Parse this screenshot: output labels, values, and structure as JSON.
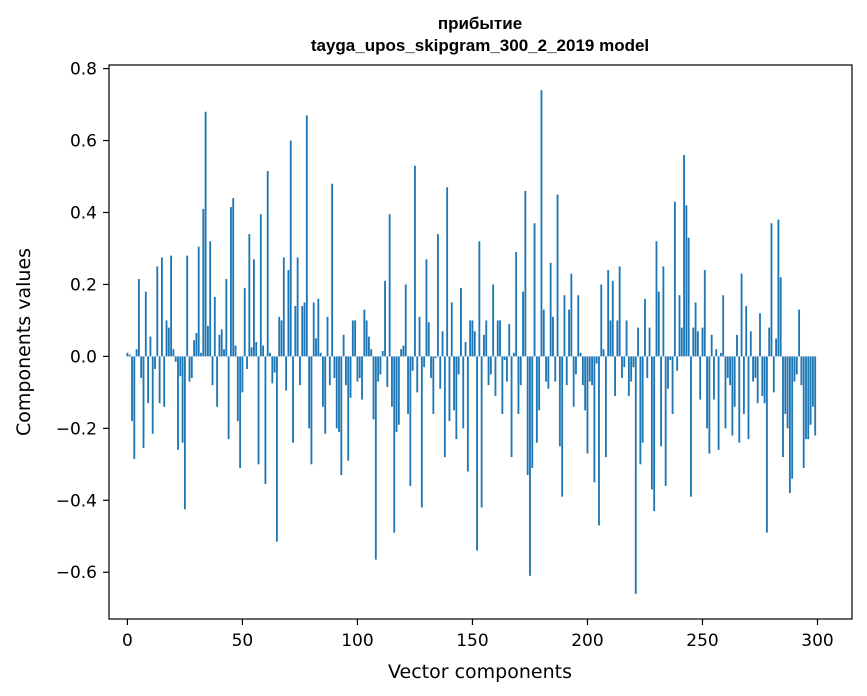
{
  "chart_data": {
    "type": "bar",
    "title": "прибытие",
    "subtitle": "tayga_upos_skipgram_300_2_2019 model",
    "xlabel": "Vector components",
    "ylabel": "Components values",
    "xlim": [
      -8,
      315
    ],
    "ylim": [
      -0.73,
      0.81
    ],
    "xticks": [
      0,
      50,
      100,
      150,
      200,
      250,
      300
    ],
    "yticks": [
      -0.6,
      -0.4,
      -0.2,
      0.0,
      0.2,
      0.4,
      0.6,
      0.8
    ],
    "ytick_labels": [
      "−0.6",
      "−0.4",
      "−0.2",
      "0.0",
      "0.2",
      "0.4",
      "0.6",
      "0.8"
    ],
    "grid": false,
    "bar_color": "#1f77b4",
    "values": [
      0.01,
      0.005,
      -0.18,
      -0.285,
      0.02,
      0.215,
      -0.06,
      -0.255,
      0.18,
      -0.13,
      0.055,
      -0.215,
      -0.035,
      0.25,
      -0.13,
      0.275,
      -0.14,
      0.1,
      0.08,
      0.28,
      0.02,
      -0.015,
      -0.26,
      -0.055,
      -0.24,
      -0.425,
      0.28,
      -0.07,
      -0.06,
      0.045,
      0.065,
      0.305,
      0.01,
      0.41,
      0.68,
      0.085,
      0.32,
      -0.08,
      0.165,
      -0.14,
      0.06,
      0.075,
      0.02,
      0.215,
      -0.23,
      0.415,
      0.44,
      0.03,
      -0.18,
      -0.31,
      -0.1,
      0.19,
      -0.035,
      0.34,
      0.025,
      0.27,
      0.04,
      -0.3,
      0.395,
      0.03,
      -0.355,
      0.515,
      0.01,
      -0.075,
      -0.045,
      -0.515,
      0.11,
      0.1,
      0.275,
      -0.095,
      0.24,
      0.6,
      -0.24,
      0.14,
      0.275,
      -0.08,
      0.14,
      0.15,
      0.67,
      -0.2,
      -0.3,
      0.15,
      0.05,
      0.16,
      0.01,
      -0.14,
      -0.215,
      0.11,
      -0.08,
      0.48,
      -0.06,
      -0.2,
      -0.21,
      -0.33,
      0.06,
      -0.08,
      -0.29,
      -0.115,
      0.1,
      0.1,
      -0.07,
      -0.06,
      -0.12,
      0.13,
      0.1,
      0.055,
      0.02,
      -0.175,
      -0.565,
      -0.07,
      -0.05,
      0.015,
      0.21,
      -0.085,
      0.395,
      -0.14,
      -0.49,
      -0.21,
      -0.19,
      0.02,
      0.03,
      0.2,
      -0.16,
      -0.36,
      -0.04,
      0.53,
      -0.1,
      0.11,
      -0.42,
      -0.03,
      0.27,
      0.095,
      -0.06,
      -0.16,
      -0.005,
      0.34,
      -0.09,
      0.07,
      -0.28,
      0.47,
      -0.18,
      0.15,
      -0.15,
      -0.23,
      -0.05,
      0.19,
      -0.2,
      0.04,
      -0.32,
      0.1,
      0.1,
      0.07,
      -0.54,
      0.32,
      -0.42,
      0.06,
      0.1,
      -0.08,
      -0.05,
      0.2,
      -0.11,
      0.1,
      0.1,
      -0.16,
      -0.01,
      -0.07,
      0.09,
      -0.28,
      0.01,
      0.29,
      -0.16,
      -0.08,
      0.18,
      0.46,
      -0.33,
      -0.61,
      -0.31,
      0.37,
      -0.24,
      -0.15,
      0.74,
      0.13,
      -0.07,
      -0.09,
      0.26,
      0.11,
      -0.07,
      0.45,
      -0.25,
      -0.39,
      0.17,
      -0.08,
      0.13,
      0.23,
      -0.14,
      -0.05,
      0.17,
      0.01,
      -0.08,
      -0.15,
      -0.27,
      -0.07,
      -0.08,
      -0.35,
      -0.02,
      -0.47,
      0.2,
      0.02,
      -0.28,
      0.24,
      0.1,
      0.21,
      -0.11,
      0.1,
      0.25,
      -0.06,
      -0.03,
      0.1,
      -0.11,
      -0.07,
      -0.03,
      -0.66,
      0.08,
      -0.3,
      -0.24,
      0.16,
      -0.06,
      0.08,
      -0.37,
      -0.43,
      0.32,
      0.18,
      -0.25,
      0.25,
      -0.36,
      -0.09,
      -0.01,
      -0.16,
      0.43,
      -0.04,
      0.17,
      0.08,
      0.56,
      0.42,
      0.33,
      -0.39,
      0.08,
      0.15,
      0.07,
      -0.12,
      0.08,
      0.24,
      -0.2,
      -0.27,
      0.06,
      -0.12,
      0.02,
      -0.26,
      0.01,
      0.17,
      -0.2,
      -0.06,
      -0.08,
      -0.22,
      -0.14,
      0.06,
      -0.24,
      0.23,
      -0.16,
      0.14,
      -0.23,
      0.07,
      -0.07,
      -0.06,
      -0.13,
      0.12,
      -0.11,
      -0.13,
      -0.49,
      0.08,
      0.37,
      -0.1,
      0.05,
      0.38,
      0.22,
      -0.28,
      -0.16,
      -0.2,
      -0.38,
      -0.34,
      -0.07,
      -0.05,
      0.13,
      -0.08,
      -0.31,
      -0.23,
      -0.23,
      -0.19,
      -0.14,
      -0.22
    ]
  }
}
